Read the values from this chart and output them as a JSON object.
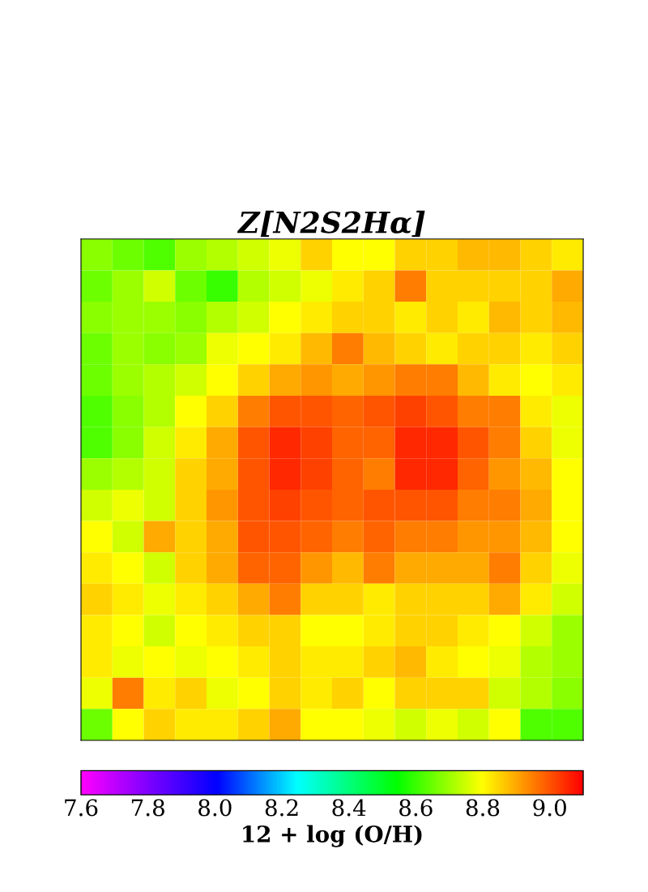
{
  "chart_data": {
    "type": "heatmap",
    "title": "Z[N2S2Hα]",
    "clabel": "12 + log (O/H)",
    "tick_labels": false,
    "categories": [
      null,
      null,
      null,
      null,
      null,
      null,
      null,
      null,
      null,
      null,
      null,
      null,
      null,
      null,
      null,
      null
    ],
    "y_categories": [
      null,
      null,
      null,
      null,
      null,
      null,
      null,
      null,
      null,
      null,
      null,
      null,
      null,
      null,
      null,
      null
    ],
    "cells": [
      [
        8.68,
        8.65,
        8.62,
        8.7,
        8.72,
        8.75,
        8.78,
        8.85,
        8.8,
        8.8,
        8.85,
        8.85,
        8.88,
        8.88,
        8.85,
        8.82
      ],
      [
        8.65,
        8.7,
        8.75,
        8.65,
        8.6,
        8.72,
        8.75,
        8.78,
        8.82,
        8.85,
        8.95,
        8.85,
        8.85,
        8.85,
        8.85,
        8.9
      ],
      [
        8.68,
        8.7,
        8.7,
        8.68,
        8.72,
        8.75,
        8.8,
        8.82,
        8.85,
        8.85,
        8.82,
        8.85,
        8.82,
        8.88,
        8.85,
        8.88
      ],
      [
        8.65,
        8.7,
        8.68,
        8.7,
        8.78,
        8.8,
        8.82,
        8.88,
        8.95,
        8.88,
        8.85,
        8.82,
        8.85,
        8.85,
        8.82,
        8.85
      ],
      [
        8.65,
        8.7,
        8.72,
        8.75,
        8.8,
        8.85,
        8.9,
        8.92,
        8.9,
        8.92,
        8.95,
        8.95,
        8.88,
        8.82,
        8.8,
        8.82
      ],
      [
        8.62,
        8.68,
        8.72,
        8.8,
        8.85,
        8.95,
        9.0,
        9.0,
        8.98,
        9.0,
        9.02,
        9.0,
        8.95,
        8.95,
        8.82,
        8.78
      ],
      [
        8.62,
        8.68,
        8.75,
        8.82,
        8.9,
        9.0,
        9.05,
        9.02,
        8.98,
        8.98,
        9.05,
        9.05,
        9.0,
        8.95,
        8.85,
        8.78
      ],
      [
        8.7,
        8.72,
        8.75,
        8.85,
        8.9,
        9.0,
        9.05,
        9.02,
        8.98,
        8.95,
        9.05,
        9.05,
        8.98,
        8.92,
        8.88,
        8.8
      ],
      [
        8.75,
        8.78,
        8.75,
        8.85,
        8.92,
        9.0,
        9.02,
        9.0,
        8.98,
        9.0,
        9.0,
        9.0,
        8.95,
        8.95,
        8.9,
        8.8
      ],
      [
        8.8,
        8.75,
        8.9,
        8.85,
        8.9,
        9.0,
        9.0,
        8.98,
        8.95,
        8.98,
        8.95,
        8.95,
        8.92,
        8.92,
        8.88,
        8.8
      ],
      [
        8.82,
        8.8,
        8.75,
        8.85,
        8.9,
        8.98,
        8.98,
        8.92,
        8.88,
        8.95,
        8.9,
        8.9,
        8.9,
        8.95,
        8.85,
        8.78
      ],
      [
        8.85,
        8.82,
        8.78,
        8.82,
        8.85,
        8.9,
        8.95,
        8.85,
        8.85,
        8.82,
        8.85,
        8.85,
        8.85,
        8.9,
        8.82,
        8.75
      ],
      [
        8.82,
        8.8,
        8.75,
        8.8,
        8.82,
        8.85,
        8.85,
        8.8,
        8.8,
        8.82,
        8.85,
        8.85,
        8.82,
        8.8,
        8.75,
        8.7
      ],
      [
        8.82,
        8.78,
        8.8,
        8.78,
        8.8,
        8.82,
        8.85,
        8.82,
        8.82,
        8.85,
        8.88,
        8.82,
        8.8,
        8.78,
        8.72,
        8.7
      ],
      [
        8.78,
        8.95,
        8.82,
        8.85,
        8.78,
        8.8,
        8.85,
        8.82,
        8.85,
        8.8,
        8.85,
        8.85,
        8.85,
        8.75,
        8.72,
        8.68
      ],
      [
        8.65,
        8.8,
        8.85,
        8.82,
        8.82,
        8.85,
        8.9,
        8.8,
        8.8,
        8.78,
        8.75,
        8.78,
        8.75,
        8.8,
        8.62,
        8.62
      ]
    ],
    "clim": [
      7.6,
      9.1
    ],
    "cticks": [
      {
        "value": 7.6,
        "label": "7.6"
      },
      {
        "value": 7.8,
        "label": "7.8"
      },
      {
        "value": 8.0,
        "label": "8.0"
      },
      {
        "value": 8.2,
        "label": "8.2"
      },
      {
        "value": 8.4,
        "label": "8.4"
      },
      {
        "value": 8.6,
        "label": "8.6"
      },
      {
        "value": 8.8,
        "label": "8.8"
      },
      {
        "value": 9.0,
        "label": "9.0"
      }
    ]
  }
}
